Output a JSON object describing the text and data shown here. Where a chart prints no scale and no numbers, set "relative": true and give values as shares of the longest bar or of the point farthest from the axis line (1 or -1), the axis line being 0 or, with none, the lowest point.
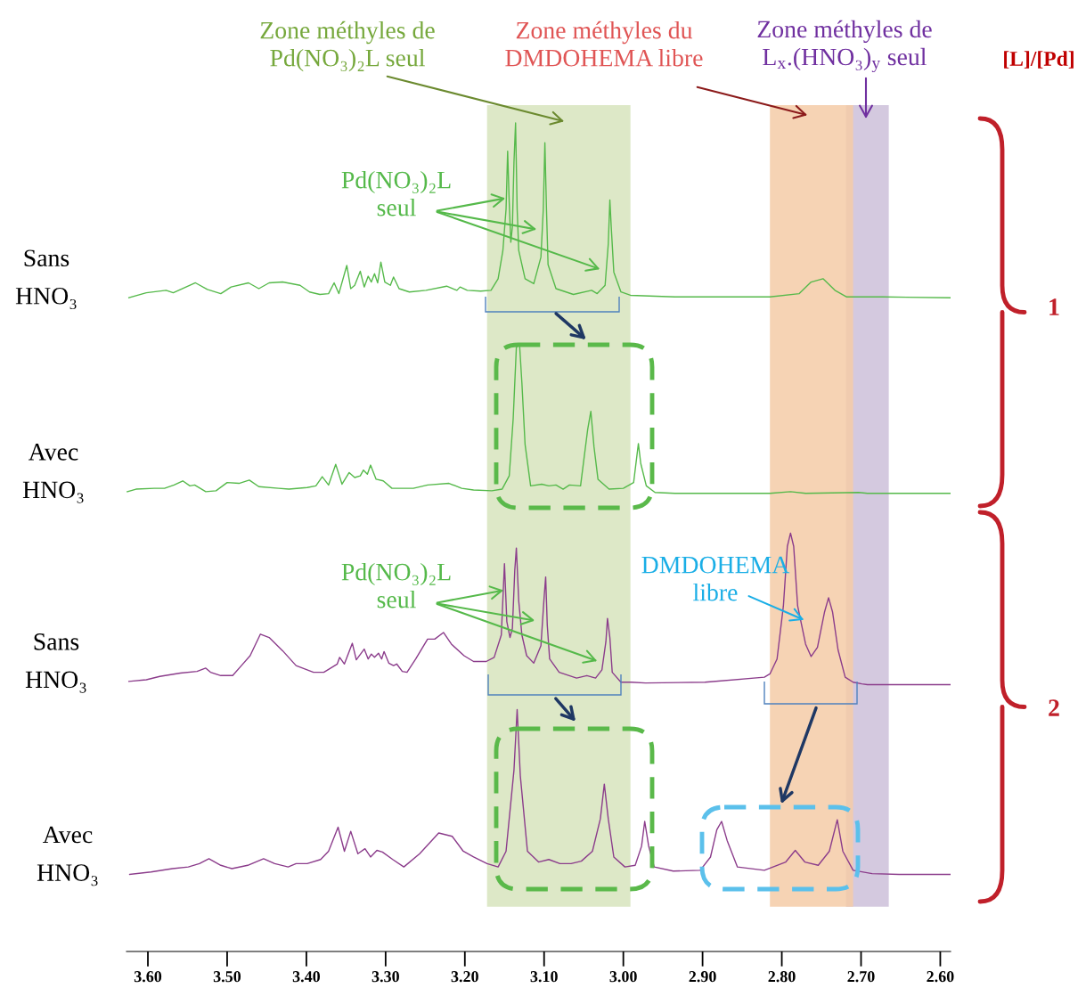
{
  "chart_data": {
    "type": "line",
    "relative": true,
    "grid": false,
    "xlim": [
      3.627,
      2.587
    ],
    "xticks": [
      {
        "value": 3.6,
        "label": "3.60"
      },
      {
        "value": 3.5,
        "label": "3.50"
      },
      {
        "value": 3.4,
        "label": "3.40"
      },
      {
        "value": 3.3,
        "label": "3.30"
      },
      {
        "value": 3.2,
        "label": "3.20"
      },
      {
        "value": 3.1,
        "label": "3.10"
      },
      {
        "value": 3.0,
        "label": "3.00"
      },
      {
        "value": 2.9,
        "label": "2.90"
      },
      {
        "value": 2.8,
        "label": "2.80"
      },
      {
        "value": 2.7,
        "label": "2.70"
      },
      {
        "value": 2.6,
        "label": "2.60"
      }
    ],
    "bands": [
      {
        "axis": "x",
        "from": 3.172,
        "to": 2.991,
        "color": "#d7e4bd"
      },
      {
        "axis": "x",
        "from": 2.719,
        "to": 2.665,
        "color": "#ccc0d9"
      },
      {
        "axis": "x",
        "from": 2.815,
        "to": 2.71,
        "color": "#f5cba7"
      }
    ],
    "annotations": [
      "Zone méthyles de\nPd(NO₃)₂L seul",
      "Zone méthyles du\nDMDOHEMA libre",
      "Zone méthyles de\nL$_{x}$.(HNO₃)$_{y}$ seul",
      "[L]/[Pd]",
      "Pd(NO₃)₂L\nseul",
      "Pd(NO₃)₂L\nseul",
      "DMDOHEMA\nlibre",
      "1",
      "2"
    ],
    "series": [
      {
        "name": "Sans\nHNO₃",
        "color": "#55b94a",
        "x": [
          3.624,
          3.602,
          3.577,
          3.568,
          3.54,
          3.525,
          3.508,
          3.495,
          3.473,
          3.46,
          3.447,
          3.43,
          3.408,
          3.396,
          3.383,
          3.372,
          3.365,
          3.359,
          3.349,
          3.344,
          3.339,
          3.332,
          3.327,
          3.322,
          3.318,
          3.314,
          3.31,
          3.306,
          3.301,
          3.294,
          3.29,
          3.283,
          3.27,
          3.249,
          3.223,
          3.21,
          3.206,
          3.197,
          3.18,
          3.167,
          3.158,
          3.152,
          3.148,
          3.146,
          3.144,
          3.142,
          3.14,
          3.138,
          3.136,
          3.134,
          3.132,
          3.124,
          3.113,
          3.104,
          3.101,
          3.099,
          3.097,
          3.095,
          3.085,
          3.063,
          3.04,
          3.033,
          3.023,
          3.019,
          3.017,
          3.015,
          3.012,
          3.003,
          2.991,
          2.935,
          2.815,
          2.778,
          2.763,
          2.748,
          2.733,
          2.718,
          2.673,
          2.587
        ],
        "values": [
          0.789,
          0.795,
          0.798,
          0.795,
          0.807,
          0.799,
          0.794,
          0.802,
          0.807,
          0.8,
          0.807,
          0.808,
          0.804,
          0.796,
          0.793,
          0.794,
          0.807,
          0.794,
          0.828,
          0.8,
          0.804,
          0.821,
          0.802,
          0.815,
          0.808,
          0.818,
          0.807,
          0.832,
          0.808,
          0.804,
          0.814,
          0.8,
          0.796,
          0.798,
          0.803,
          0.798,
          0.802,
          0.798,
          0.797,
          0.798,
          0.812,
          0.846,
          0.896,
          0.966,
          0.904,
          0.856,
          0.875,
          0.953,
          1.0,
          0.896,
          0.846,
          0.812,
          0.806,
          0.838,
          0.896,
          0.976,
          0.896,
          0.829,
          0.8,
          0.793,
          0.798,
          0.794,
          0.804,
          0.854,
          0.907,
          0.87,
          0.82,
          0.796,
          0.792,
          0.79,
          0.79,
          0.794,
          0.808,
          0.812,
          0.798,
          0.79,
          0.79,
          0.789
        ]
      },
      {
        "name": "Avec\nHNO₃",
        "color": "#55b94a",
        "x": [
          3.626,
          3.615,
          3.592,
          3.579,
          3.567,
          3.556,
          3.547,
          3.541,
          3.527,
          3.514,
          3.5,
          3.485,
          3.472,
          3.46,
          3.435,
          3.422,
          3.399,
          3.388,
          3.38,
          3.372,
          3.363,
          3.355,
          3.346,
          3.339,
          3.332,
          3.328,
          3.323,
          3.319,
          3.312,
          3.303,
          3.292,
          3.265,
          3.247,
          3.22,
          3.204,
          3.189,
          3.166,
          3.153,
          3.144,
          3.139,
          3.135,
          3.131,
          3.128,
          3.124,
          3.117,
          3.103,
          3.094,
          3.085,
          3.076,
          3.068,
          3.054,
          3.045,
          3.041,
          3.037,
          3.032,
          3.018,
          3.0,
          2.987,
          2.981,
          2.978,
          2.971,
          2.96,
          2.935,
          2.815,
          2.789,
          2.77,
          2.703,
          2.692,
          2.587
        ],
        "values": [
          0.555,
          0.558,
          0.559,
          0.559,
          0.563,
          0.568,
          0.562,
          0.563,
          0.555,
          0.556,
          0.566,
          0.565,
          0.569,
          0.561,
          0.559,
          0.558,
          0.56,
          0.562,
          0.573,
          0.563,
          0.588,
          0.564,
          0.578,
          0.572,
          0.574,
          0.581,
          0.576,
          0.587,
          0.57,
          0.568,
          0.559,
          0.559,
          0.563,
          0.565,
          0.559,
          0.557,
          0.556,
          0.558,
          0.574,
          0.643,
          0.729,
          0.733,
          0.686,
          0.612,
          0.562,
          0.564,
          0.562,
          0.563,
          0.558,
          0.563,
          0.562,
          0.63,
          0.652,
          0.609,
          0.57,
          0.558,
          0.559,
          0.566,
          0.613,
          0.589,
          0.562,
          0.554,
          0.553,
          0.553,
          0.555,
          0.553,
          0.554,
          0.553,
          0.553
        ]
      },
      {
        "name": "Sans\nHNO₃",
        "color": "#8b3c8b",
        "x": [
          3.624,
          3.602,
          3.585,
          3.559,
          3.538,
          3.527,
          3.521,
          3.508,
          3.493,
          3.482,
          3.471,
          3.458,
          3.447,
          3.43,
          3.413,
          3.391,
          3.378,
          3.361,
          3.358,
          3.352,
          3.342,
          3.337,
          3.327,
          3.322,
          3.318,
          3.314,
          3.309,
          3.305,
          3.302,
          3.296,
          3.29,
          3.286,
          3.279,
          3.273,
          3.262,
          3.247,
          3.238,
          3.227,
          3.217,
          3.201,
          3.189,
          3.173,
          3.163,
          3.154,
          3.15,
          3.147,
          3.143,
          3.14,
          3.137,
          3.135,
          3.132,
          3.128,
          3.122,
          3.113,
          3.104,
          3.1,
          3.098,
          3.096,
          3.093,
          3.081,
          3.059,
          3.046,
          3.035,
          3.027,
          3.022,
          3.02,
          3.017,
          3.014,
          3.003,
          2.99,
          2.972,
          2.897,
          2.822,
          2.815,
          2.806,
          2.798,
          2.793,
          2.789,
          2.785,
          2.78,
          2.77,
          2.763,
          2.755,
          2.746,
          2.741,
          2.736,
          2.729,
          2.72,
          2.71,
          2.699,
          2.692,
          2.587
        ],
        "values": [
          0.326,
          0.328,
          0.332,
          0.336,
          0.338,
          0.342,
          0.337,
          0.333,
          0.333,
          0.345,
          0.357,
          0.383,
          0.379,
          0.363,
          0.345,
          0.337,
          0.337,
          0.347,
          0.355,
          0.347,
          0.372,
          0.352,
          0.365,
          0.353,
          0.359,
          0.355,
          0.36,
          0.353,
          0.362,
          0.348,
          0.345,
          0.347,
          0.338,
          0.337,
          0.353,
          0.377,
          0.377,
          0.385,
          0.371,
          0.357,
          0.35,
          0.35,
          0.355,
          0.382,
          0.468,
          0.398,
          0.379,
          0.39,
          0.46,
          0.487,
          0.423,
          0.382,
          0.357,
          0.348,
          0.369,
          0.427,
          0.452,
          0.394,
          0.353,
          0.337,
          0.33,
          0.333,
          0.33,
          0.34,
          0.374,
          0.402,
          0.379,
          0.337,
          0.325,
          0.325,
          0.324,
          0.325,
          0.331,
          0.335,
          0.353,
          0.417,
          0.489,
          0.505,
          0.489,
          0.417,
          0.371,
          0.356,
          0.367,
          0.41,
          0.427,
          0.41,
          0.364,
          0.331,
          0.325,
          0.323,
          0.322,
          0.322
        ]
      },
      {
        "name": "Avec\nHNO₃",
        "color": "#8b3c8b",
        "x": [
          3.623,
          3.596,
          3.569,
          3.549,
          3.535,
          3.523,
          3.508,
          3.494,
          3.474,
          3.454,
          3.44,
          3.423,
          3.413,
          3.399,
          3.382,
          3.372,
          3.36,
          3.352,
          3.344,
          3.335,
          3.326,
          3.319,
          3.311,
          3.304,
          3.291,
          3.277,
          3.257,
          3.233,
          3.216,
          3.202,
          3.189,
          3.172,
          3.158,
          3.148,
          3.138,
          3.134,
          3.13,
          3.121,
          3.107,
          3.094,
          3.08,
          3.066,
          3.053,
          3.039,
          3.029,
          3.024,
          3.019,
          3.012,
          2.998,
          2.985,
          2.977,
          2.973,
          2.968,
          2.961,
          2.937,
          2.903,
          2.89,
          2.882,
          2.876,
          2.869,
          2.856,
          2.822,
          2.795,
          2.783,
          2.771,
          2.754,
          2.74,
          2.73,
          2.723,
          2.71,
          2.686,
          2.652,
          2.587
        ],
        "values": [
          0.093,
          0.096,
          0.1,
          0.102,
          0.106,
          0.112,
          0.104,
          0.1,
          0.104,
          0.112,
          0.106,
          0.102,
          0.106,
          0.106,
          0.111,
          0.121,
          0.15,
          0.121,
          0.145,
          0.118,
          0.124,
          0.114,
          0.122,
          0.12,
          0.111,
          0.102,
          0.118,
          0.143,
          0.139,
          0.121,
          0.114,
          0.106,
          0.102,
          0.121,
          0.219,
          0.292,
          0.212,
          0.121,
          0.108,
          0.111,
          0.106,
          0.106,
          0.109,
          0.121,
          0.16,
          0.202,
          0.16,
          0.114,
          0.102,
          0.104,
          0.127,
          0.157,
          0.127,
          0.102,
          0.097,
          0.098,
          0.114,
          0.147,
          0.157,
          0.134,
          0.102,
          0.098,
          0.108,
          0.122,
          0.108,
          0.104,
          0.121,
          0.159,
          0.121,
          0.098,
          0.094,
          0.093,
          0.093
        ]
      }
    ]
  }
}
